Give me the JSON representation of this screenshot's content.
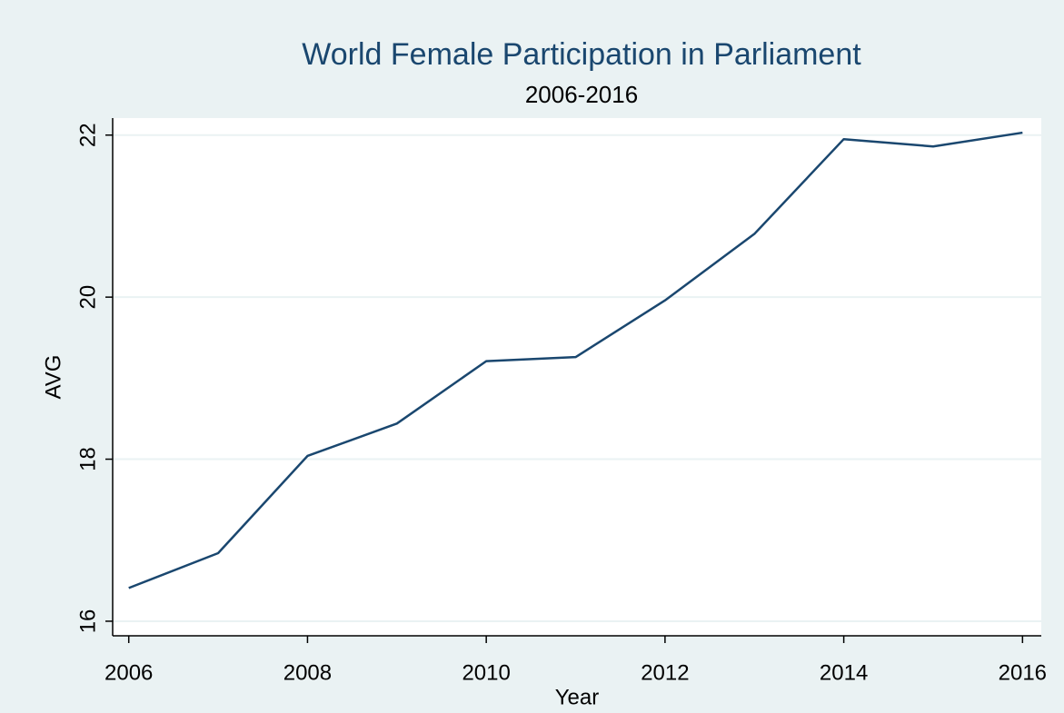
{
  "chart_data": {
    "type": "line",
    "title": "World Female Participation in Parliament",
    "subtitle": "2006-2016",
    "x_label": "Year",
    "y_label": "AVG",
    "x": [
      2006,
      2007,
      2008,
      2009,
      2010,
      2011,
      2012,
      2013,
      2014,
      2015,
      2016
    ],
    "series": [
      {
        "name": "AVG",
        "color": "#1a476f",
        "values": [
          16.41,
          16.84,
          18.04,
          18.44,
          19.21,
          19.26,
          19.96,
          20.78,
          21.95,
          21.86,
          22.03
        ]
      }
    ],
    "xlim": [
      2005.82,
      2016.21
    ],
    "xticks": [
      2006,
      2008,
      2010,
      2012,
      2014,
      2016
    ],
    "ylim": [
      15.82,
      22.21
    ],
    "yticks": [
      16,
      18,
      20,
      22
    ],
    "grid": true
  }
}
